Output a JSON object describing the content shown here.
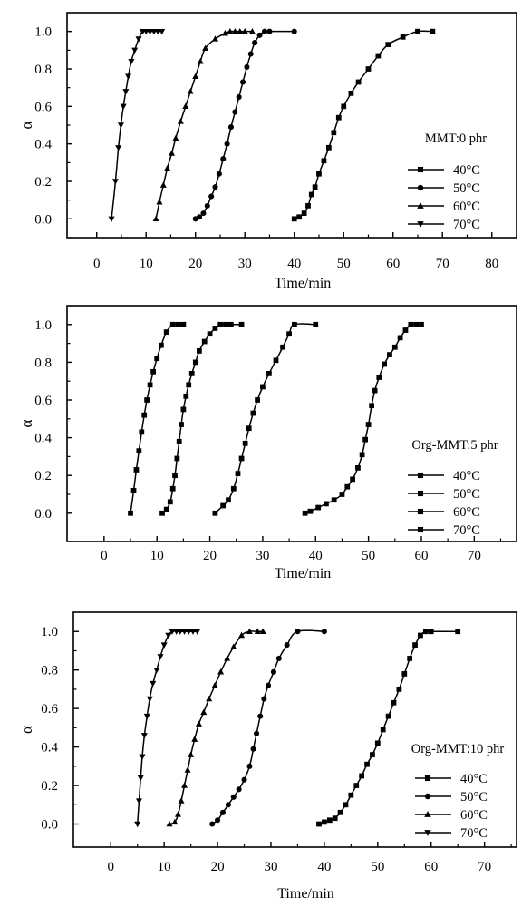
{
  "chart_data": [
    {
      "type": "line",
      "annotation": "MMT:0 phr",
      "xlabel": "Time/min",
      "ylabel": "α",
      "xlim": [
        -6,
        85
      ],
      "ylim": [
        -0.1,
        1.1
      ],
      "xticks": [
        0,
        10,
        20,
        30,
        40,
        50,
        60,
        70,
        80
      ],
      "yticks": [
        0.0,
        0.2,
        0.4,
        0.6,
        0.8,
        1.0
      ],
      "legend_position": "bottom-right",
      "series": [
        {
          "name": "40°C",
          "marker": "square",
          "x": [
            40,
            41,
            42,
            42.8,
            43.5,
            44.2,
            45,
            46,
            47,
            48,
            49,
            50,
            51.5,
            53,
            55,
            57,
            59,
            62,
            65,
            68
          ],
          "y": [
            0,
            0.01,
            0.03,
            0.07,
            0.13,
            0.17,
            0.24,
            0.31,
            0.38,
            0.46,
            0.54,
            0.6,
            0.67,
            0.73,
            0.8,
            0.87,
            0.93,
            0.97,
            1.0,
            1.0
          ]
        },
        {
          "name": "50°C",
          "marker": "circle",
          "x": [
            20,
            20.8,
            21.6,
            22.4,
            23.2,
            24,
            24.8,
            25.6,
            26.4,
            27.2,
            28,
            28.8,
            29.6,
            30.4,
            31.2,
            32,
            33,
            34,
            35,
            40
          ],
          "y": [
            0,
            0.01,
            0.03,
            0.07,
            0.12,
            0.17,
            0.24,
            0.32,
            0.4,
            0.49,
            0.57,
            0.65,
            0.73,
            0.81,
            0.88,
            0.94,
            0.98,
            1.0,
            1.0,
            1.0
          ]
        },
        {
          "name": "60°C",
          "marker": "triangle-up",
          "x": [
            12,
            12.7,
            13.5,
            14.3,
            15.2,
            16,
            17,
            18,
            19,
            20,
            21,
            22,
            24,
            26,
            27,
            28,
            29,
            30,
            31.5
          ],
          "y": [
            0,
            0.09,
            0.18,
            0.27,
            0.35,
            0.43,
            0.52,
            0.6,
            0.68,
            0.76,
            0.84,
            0.91,
            0.96,
            0.99,
            1.0,
            1.0,
            1.0,
            1.0,
            1.0
          ]
        },
        {
          "name": "70°C",
          "marker": "triangle-down",
          "x": [
            3,
            3.8,
            4.4,
            4.9,
            5.4,
            5.9,
            6.4,
            7,
            7.7,
            8.5,
            9.3,
            10,
            10.8,
            11.6,
            12.4,
            13.2
          ],
          "y": [
            0,
            0.2,
            0.38,
            0.5,
            0.6,
            0.68,
            0.76,
            0.84,
            0.9,
            0.96,
            1.0,
            1.0,
            1.0,
            1.0,
            1.0,
            1.0
          ]
        }
      ]
    },
    {
      "type": "line",
      "annotation": "Org-MMT:5 phr",
      "xlabel": "Time/min",
      "ylabel": "α",
      "xlim": [
        -7,
        78
      ],
      "ylim": [
        -0.15,
        1.1
      ],
      "xticks": [
        0,
        10,
        20,
        30,
        40,
        50,
        60,
        70
      ],
      "yticks": [
        0.0,
        0.2,
        0.4,
        0.6,
        0.8,
        1.0
      ],
      "legend_position": "bottom-right",
      "series": [
        {
          "name": "40°C",
          "marker": "square",
          "x": [
            38,
            39,
            40.5,
            42,
            43.5,
            45,
            46,
            47,
            48,
            48.8,
            49.4,
            50,
            50.6,
            51.2,
            52,
            53,
            54,
            55,
            56,
            57,
            58,
            59,
            60
          ],
          "y": [
            0,
            0.01,
            0.03,
            0.05,
            0.07,
            0.1,
            0.14,
            0.18,
            0.24,
            0.31,
            0.39,
            0.47,
            0.57,
            0.65,
            0.72,
            0.79,
            0.84,
            0.88,
            0.93,
            0.97,
            1.0,
            1.0,
            1.0
          ]
        },
        {
          "name": "50°C",
          "marker": "square",
          "x": [
            21,
            22.5,
            23.5,
            24.5,
            25.3,
            26,
            26.7,
            27.4,
            28.2,
            29,
            30,
            31.2,
            32.5,
            33.8,
            35,
            36,
            40
          ],
          "y": [
            0,
            0.04,
            0.07,
            0.13,
            0.21,
            0.29,
            0.37,
            0.45,
            0.53,
            0.6,
            0.67,
            0.74,
            0.81,
            0.88,
            0.95,
            1.0,
            1.0
          ]
        },
        {
          "name": "60°C",
          "marker": "square",
          "x": [
            11,
            11.8,
            12.5,
            13,
            13.4,
            13.8,
            14.2,
            14.6,
            15,
            15.5,
            16,
            16.6,
            17.3,
            18,
            19,
            20,
            21,
            22,
            23,
            24,
            26
          ],
          "y": [
            0,
            0.02,
            0.06,
            0.13,
            0.2,
            0.29,
            0.38,
            0.47,
            0.55,
            0.62,
            0.68,
            0.74,
            0.8,
            0.86,
            0.91,
            0.95,
            0.98,
            1.0,
            1.0,
            1.0,
            1.0
          ]
        },
        {
          "name": "70°C",
          "marker": "square",
          "x": [
            5,
            5.6,
            6.1,
            6.6,
            7.1,
            7.6,
            8.1,
            8.7,
            9.3,
            10,
            10.8,
            11.8,
            13,
            14,
            15
          ],
          "y": [
            0,
            0.12,
            0.23,
            0.33,
            0.43,
            0.52,
            0.6,
            0.68,
            0.75,
            0.82,
            0.89,
            0.96,
            1.0,
            1.0,
            1.0
          ]
        }
      ]
    },
    {
      "type": "line",
      "annotation": "Org-MMT:10 phr",
      "xlabel": "Time/min",
      "ylabel": "α",
      "xlim": [
        -7,
        76
      ],
      "ylim": [
        -0.12,
        1.1
      ],
      "xticks": [
        0,
        10,
        20,
        30,
        40,
        50,
        60,
        70
      ],
      "yticks": [
        0.0,
        0.2,
        0.4,
        0.6,
        0.8,
        1.0
      ],
      "legend_position": "bottom-right",
      "series": [
        {
          "name": "40°C",
          "marker": "square",
          "x": [
            39,
            40,
            41,
            42,
            43,
            44,
            45,
            46,
            47,
            48,
            49,
            50,
            51,
            52,
            53,
            54,
            55,
            56,
            57,
            58,
            59,
            60,
            65
          ],
          "y": [
            0,
            0.01,
            0.02,
            0.03,
            0.06,
            0.1,
            0.15,
            0.2,
            0.25,
            0.31,
            0.36,
            0.42,
            0.49,
            0.56,
            0.63,
            0.7,
            0.78,
            0.86,
            0.93,
            0.98,
            1.0,
            1.0,
            1.0
          ]
        },
        {
          "name": "50°C",
          "marker": "circle",
          "x": [
            19,
            20,
            21,
            22,
            23,
            24,
            25,
            26,
            26.7,
            27.3,
            28,
            28.7,
            29.5,
            30.5,
            31.5,
            33,
            35,
            40
          ],
          "y": [
            0,
            0.02,
            0.06,
            0.1,
            0.14,
            0.18,
            0.23,
            0.3,
            0.39,
            0.47,
            0.56,
            0.65,
            0.72,
            0.79,
            0.86,
            0.93,
            1.0,
            1.0
          ]
        },
        {
          "name": "60°C",
          "marker": "triangle-up",
          "x": [
            11,
            12,
            12.6,
            13.2,
            13.8,
            14.4,
            15,
            15.7,
            16.5,
            17.4,
            18.4,
            19.5,
            20.6,
            21.8,
            23,
            24.5,
            26,
            27.5,
            28.5
          ],
          "y": [
            0,
            0.01,
            0.05,
            0.12,
            0.2,
            0.28,
            0.36,
            0.44,
            0.52,
            0.58,
            0.65,
            0.72,
            0.79,
            0.86,
            0.92,
            0.98,
            1.0,
            1.0,
            1.0
          ]
        },
        {
          "name": "70°C",
          "marker": "triangle-down",
          "x": [
            5,
            5.3,
            5.6,
            5.9,
            6.3,
            6.8,
            7.3,
            7.9,
            8.6,
            9.3,
            10,
            10.8,
            11.5,
            12.3,
            13,
            13.8,
            14.6,
            15.4,
            16.2
          ],
          "y": [
            0,
            0.12,
            0.24,
            0.35,
            0.46,
            0.56,
            0.65,
            0.73,
            0.8,
            0.87,
            0.93,
            0.98,
            1.0,
            1.0,
            1.0,
            1.0,
            1.0,
            1.0,
            1.0
          ]
        }
      ]
    }
  ]
}
